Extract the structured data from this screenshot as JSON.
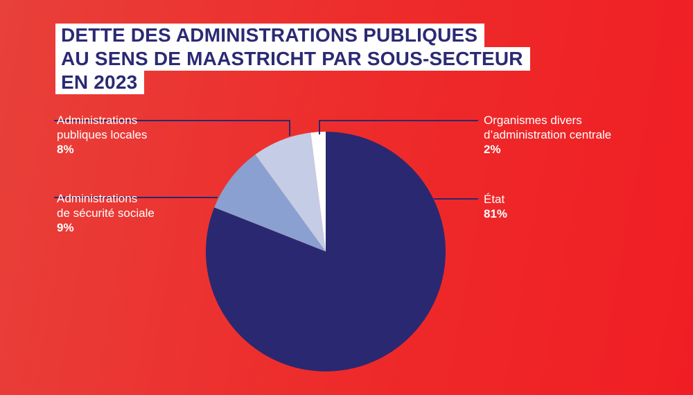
{
  "chart_data": {
    "type": "pie",
    "title": [
      "DETTE DES ADMINISTRATIONS PUBLIQUES",
      "AU SENS DE MAASTRICHT PAR SOUS-SECTEUR",
      "EN 2023"
    ],
    "slices": [
      {
        "id": "etat",
        "label_lines": [
          "État"
        ],
        "pct_label": "81%",
        "value": 81,
        "color": "#2a2870"
      },
      {
        "id": "ssoc",
        "label_lines": [
          "Administrations",
          "de sécurité sociale"
        ],
        "pct_label": "9%",
        "value": 9,
        "color": "#8aa0d0"
      },
      {
        "id": "apul",
        "label_lines": [
          "Administrations",
          "publiques locales"
        ],
        "pct_label": "8%",
        "value": 8,
        "color": "#c4cce6"
      },
      {
        "id": "odac",
        "label_lines": [
          "Organismes divers",
          "d’administration centrale"
        ],
        "pct_label": "2%",
        "value": 2,
        "color": "#ffffff"
      }
    ],
    "start": "top",
    "direction": "clockwise"
  }
}
